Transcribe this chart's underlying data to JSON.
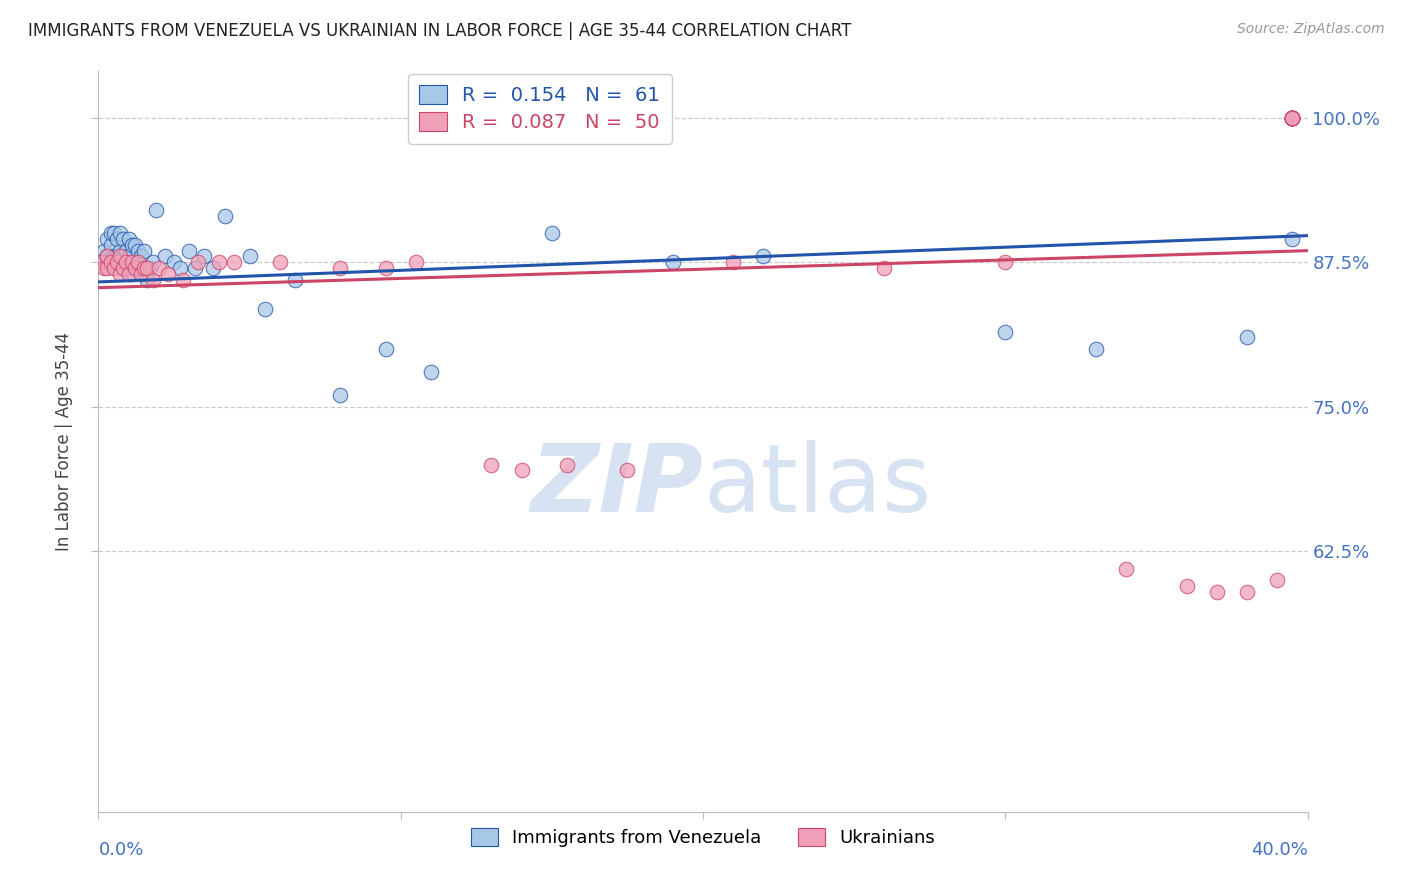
{
  "title": "IMMIGRANTS FROM VENEZUELA VS UKRAINIAN IN LABOR FORCE | AGE 35-44 CORRELATION CHART",
  "source": "Source: ZipAtlas.com",
  "ylabel": "In Labor Force | Age 35-44",
  "ytick_labels": [
    "100.0%",
    "87.5%",
    "75.0%",
    "62.5%"
  ],
  "ytick_values": [
    1.0,
    0.875,
    0.75,
    0.625
  ],
  "xlim": [
    0.0,
    0.4
  ],
  "ylim": [
    0.4,
    1.04
  ],
  "legend_blue_r": "R = ",
  "legend_blue_r_val": "0.154",
  "legend_blue_n": "N = ",
  "legend_blue_n_val": "61",
  "legend_pink_r": "R = ",
  "legend_pink_r_val": "0.087",
  "legend_pink_n": "N = ",
  "legend_pink_n_val": "50",
  "legend_label_blue": "Immigrants from Venezuela",
  "legend_label_pink": "Ukrainians",
  "blue_color": "#a8c8e8",
  "pink_color": "#f0a0b8",
  "trend_blue": "#2255aa",
  "trend_pink": "#cc4466",
  "axis_label_color": "#4472c4",
  "watermark_color": "#d0dff0",
  "blue_x": [
    0.001,
    0.002,
    0.002,
    0.003,
    0.003,
    0.003,
    0.004,
    0.004,
    0.004,
    0.005,
    0.005,
    0.005,
    0.006,
    0.006,
    0.006,
    0.007,
    0.007,
    0.007,
    0.008,
    0.008,
    0.008,
    0.009,
    0.009,
    0.01,
    0.01,
    0.01,
    0.011,
    0.011,
    0.012,
    0.012,
    0.013,
    0.013,
    0.014,
    0.015,
    0.015,
    0.016,
    0.017,
    0.018,
    0.019,
    0.022,
    0.025,
    0.027,
    0.03,
    0.032,
    0.035,
    0.038,
    0.042,
    0.05,
    0.055,
    0.065,
    0.08,
    0.095,
    0.11,
    0.15,
    0.19,
    0.22,
    0.3,
    0.33,
    0.38,
    0.395,
    0.395
  ],
  "blue_y": [
    0.875,
    0.875,
    0.885,
    0.88,
    0.875,
    0.895,
    0.875,
    0.89,
    0.9,
    0.875,
    0.88,
    0.9,
    0.875,
    0.88,
    0.895,
    0.875,
    0.885,
    0.9,
    0.87,
    0.88,
    0.895,
    0.87,
    0.885,
    0.87,
    0.88,
    0.895,
    0.865,
    0.89,
    0.87,
    0.89,
    0.87,
    0.885,
    0.88,
    0.87,
    0.885,
    0.86,
    0.87,
    0.875,
    0.92,
    0.88,
    0.875,
    0.87,
    0.885,
    0.87,
    0.88,
    0.87,
    0.915,
    0.88,
    0.835,
    0.86,
    0.76,
    0.8,
    0.78,
    0.9,
    0.875,
    0.88,
    0.815,
    0.8,
    0.81,
    0.895,
    1.0
  ],
  "pink_x": [
    0.001,
    0.002,
    0.003,
    0.003,
    0.004,
    0.005,
    0.006,
    0.007,
    0.007,
    0.008,
    0.009,
    0.01,
    0.011,
    0.012,
    0.013,
    0.014,
    0.015,
    0.016,
    0.018,
    0.02,
    0.023,
    0.028,
    0.033,
    0.04,
    0.045,
    0.06,
    0.08,
    0.095,
    0.105,
    0.13,
    0.14,
    0.155,
    0.175,
    0.21,
    0.26,
    0.3,
    0.34,
    0.36,
    0.37,
    0.38,
    0.39,
    0.395,
    0.395,
    0.395,
    0.395,
    0.395,
    0.395,
    0.395,
    0.395,
    0.395
  ],
  "pink_y": [
    0.875,
    0.87,
    0.87,
    0.88,
    0.875,
    0.87,
    0.875,
    0.865,
    0.88,
    0.87,
    0.875,
    0.865,
    0.875,
    0.87,
    0.875,
    0.865,
    0.87,
    0.87,
    0.86,
    0.87,
    0.865,
    0.86,
    0.875,
    0.875,
    0.875,
    0.875,
    0.87,
    0.87,
    0.875,
    0.7,
    0.695,
    0.7,
    0.695,
    0.875,
    0.87,
    0.875,
    0.61,
    0.595,
    0.59,
    0.59,
    0.6,
    1.0,
    1.0,
    1.0,
    1.0,
    1.0,
    1.0,
    1.0,
    1.0,
    1.0
  ],
  "trend_blue_x0": 0.0,
  "trend_blue_y0": 0.858,
  "trend_blue_x1": 0.4,
  "trend_blue_y1": 0.898,
  "trend_pink_x0": 0.0,
  "trend_pink_y0": 0.853,
  "trend_pink_x1": 0.4,
  "trend_pink_y1": 0.885
}
